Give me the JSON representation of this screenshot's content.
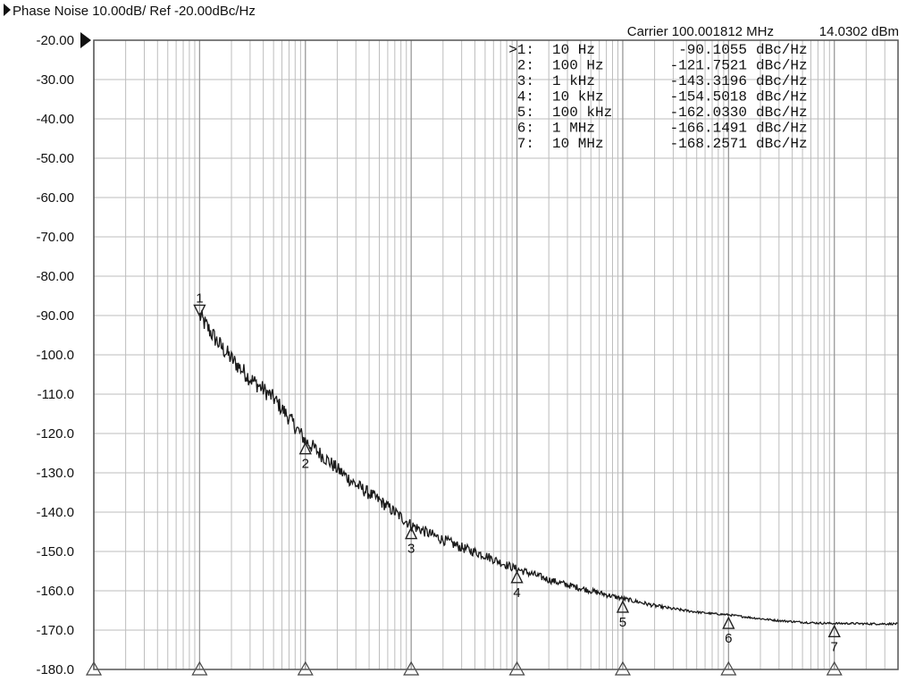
{
  "header": {
    "title": "Phase Noise 10.00dB/ Ref -20.00dBc/Hz",
    "carrier": "Carrier 100.001812 MHz",
    "power": "14.0302 dBm"
  },
  "colors": {
    "trace": "#1a1a1a",
    "grid": "#bdbdbd",
    "frame": "#555555",
    "marker": "#222222"
  },
  "chart_data": {
    "type": "line",
    "title": "Phase Noise 10.00dB/ Ref -20.00dBc/Hz",
    "xlabel": "",
    "ylabel": "",
    "x_scale": "log",
    "xlim": [
      1,
      40000000
    ],
    "ylim": [
      -180,
      -20
    ],
    "y_ticks": [
      "-20.00",
      "-30.00",
      "-40.00",
      "-50.00",
      "-60.00",
      "-70.00",
      "-80.00",
      "-90.00",
      "-100.0",
      "-110.0",
      "-120.0",
      "-130.0",
      "-140.0",
      "-150.0",
      "-160.0",
      "-170.0",
      "-180.0"
    ],
    "y_tick_values": [
      -20,
      -30,
      -40,
      -50,
      -60,
      -70,
      -80,
      -90,
      -100,
      -110,
      -120,
      -130,
      -140,
      -150,
      -160,
      -170,
      -180
    ],
    "grid": true,
    "legend": "none",
    "markers": [
      {
        "id": "1",
        "prefix": ">1:",
        "freq_label": "10 Hz",
        "value_label": "-90.1055",
        "unit": "dBc/Hz",
        "x": 10,
        "y": -90.1055
      },
      {
        "id": "2",
        "prefix": "2:",
        "freq_label": "100 Hz",
        "value_label": "-121.7521",
        "unit": "dBc/Hz",
        "x": 100,
        "y": -121.7521
      },
      {
        "id": "3",
        "prefix": "3:",
        "freq_label": "1 kHz",
        "value_label": "-143.3196",
        "unit": "dBc/Hz",
        "x": 1000,
        "y": -143.3196
      },
      {
        "id": "4",
        "prefix": "4:",
        "freq_label": "10 kHz",
        "value_label": "-154.5018",
        "unit": "dBc/Hz",
        "x": 10000,
        "y": -154.5018
      },
      {
        "id": "5",
        "prefix": "5:",
        "freq_label": "100 kHz",
        "value_label": "-162.0330",
        "unit": "dBc/Hz",
        "x": 100000,
        "y": -162.033
      },
      {
        "id": "6",
        "prefix": "6:",
        "freq_label": "1 MHz",
        "value_label": "-166.1491",
        "unit": "dBc/Hz",
        "x": 1000000,
        "y": -166.1491
      },
      {
        "id": "7",
        "prefix": "7:",
        "freq_label": "10 MHz",
        "value_label": "-168.2571",
        "unit": "dBc/Hz",
        "x": 10000000,
        "y": -168.2571
      }
    ],
    "series": [
      {
        "x": [
          10,
          15,
          20,
          30,
          50,
          70,
          100,
          150,
          200,
          300,
          500,
          700,
          1000,
          1500,
          2000,
          3000,
          5000,
          7000,
          10000,
          15000,
          20000,
          30000,
          50000,
          70000,
          100000,
          150000,
          200000,
          300000,
          500000,
          700000,
          1000000,
          1500000,
          2000000,
          3000000,
          5000000,
          7000000,
          10000000,
          15000000,
          20000000,
          30000000,
          40000000
        ],
        "y": [
          -90.1,
          -97,
          -101,
          -106,
          -111,
          -116,
          -121.8,
          -126,
          -129,
          -133,
          -137,
          -140,
          -143.3,
          -145.5,
          -147,
          -149,
          -151,
          -152.8,
          -154.5,
          -156,
          -157.2,
          -158.5,
          -160,
          -161,
          -162,
          -163,
          -163.8,
          -164.6,
          -165.4,
          -165.8,
          -166.1,
          -166.7,
          -167.1,
          -167.6,
          -168,
          -168.2,
          -168.3,
          -168.3,
          -168.4,
          -168.4,
          -168.4
        ]
      }
    ]
  }
}
